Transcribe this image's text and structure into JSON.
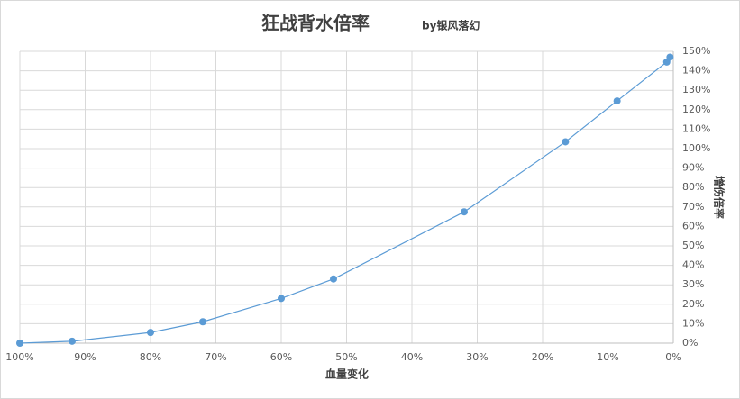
{
  "chart_data": {
    "type": "line",
    "title": "狂战背水倍率",
    "subtitle": "by银风落幻",
    "x_label": "血量变化",
    "y_label": "增伤倍率",
    "x": [
      100,
      92,
      80,
      72,
      60,
      52,
      32,
      16.5,
      8.6,
      1,
      0.5
    ],
    "values": [
      0,
      1,
      5.5,
      11,
      23,
      33,
      67.5,
      103.5,
      124.5,
      144.5,
      147
    ],
    "color": "#5b9bd5",
    "xlim": [
      100,
      0
    ],
    "xticks": [
      {
        "value": 100,
        "label": "100%"
      },
      {
        "value": 90,
        "label": "90%"
      },
      {
        "value": 80,
        "label": "80%"
      },
      {
        "value": 70,
        "label": "70%"
      },
      {
        "value": 60,
        "label": "60%"
      },
      {
        "value": 50,
        "label": "50%"
      },
      {
        "value": 40,
        "label": "40%"
      },
      {
        "value": 30,
        "label": "30%"
      },
      {
        "value": 20,
        "label": "20%"
      },
      {
        "value": 10,
        "label": "10%"
      },
      {
        "value": 0,
        "label": "0%"
      }
    ],
    "ylim": [
      0,
      150
    ],
    "yticks": [
      {
        "value": 0,
        "label": "0%"
      },
      {
        "value": 10,
        "label": "10%"
      },
      {
        "value": 20,
        "label": "20%"
      },
      {
        "value": 30,
        "label": "30%"
      },
      {
        "value": 40,
        "label": "40%"
      },
      {
        "value": 50,
        "label": "50%"
      },
      {
        "value": 60,
        "label": "60%"
      },
      {
        "value": 70,
        "label": "70%"
      },
      {
        "value": 80,
        "label": "80%"
      },
      {
        "value": 90,
        "label": "90%"
      },
      {
        "value": 100,
        "label": "100%"
      },
      {
        "value": 110,
        "label": "110%"
      },
      {
        "value": 120,
        "label": "120%"
      },
      {
        "value": 130,
        "label": "130%"
      },
      {
        "value": 140,
        "label": "140%"
      },
      {
        "value": 150,
        "label": "150%"
      }
    ],
    "grid": true
  }
}
